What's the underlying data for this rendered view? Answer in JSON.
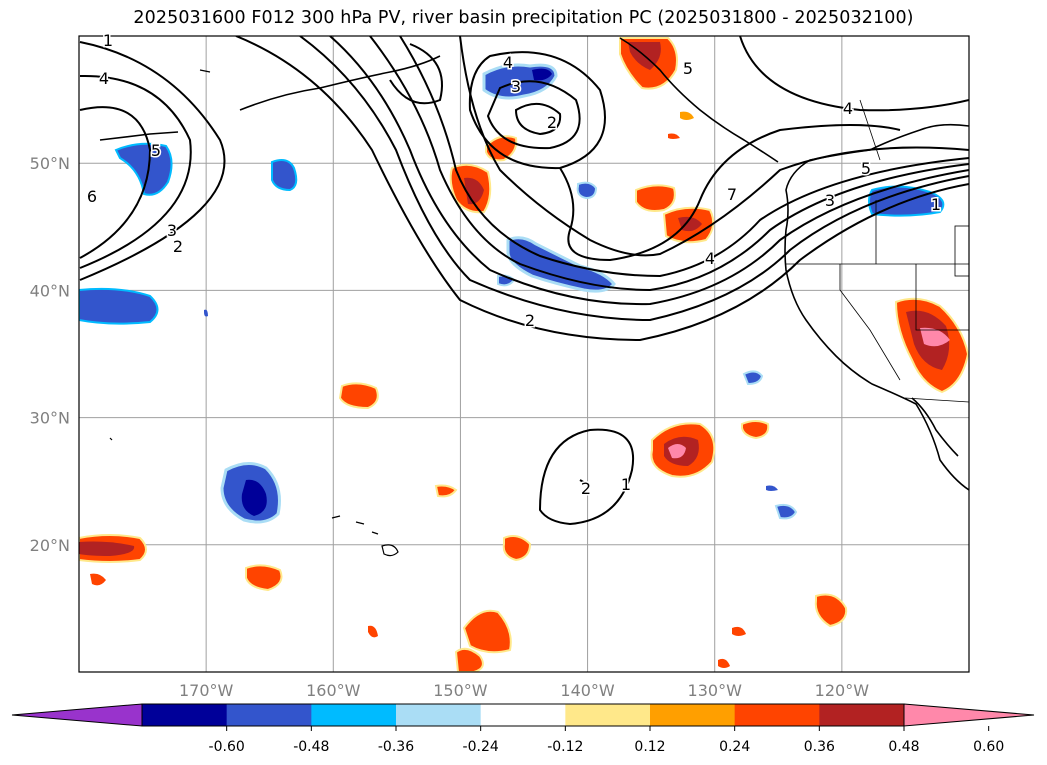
{
  "title": "2025031600 F012 300 hPa PV, river basin precipitation PC (2025031800 - 2025032100)",
  "map": {
    "lon_range": [
      180,
      110
    ],
    "lat_range": [
      10,
      60
    ],
    "lat_ticks": [
      {
        "lat": 20,
        "label": "20°N"
      },
      {
        "lat": 30,
        "label": "30°N"
      },
      {
        "lat": 40,
        "label": "40°N"
      },
      {
        "lat": 50,
        "label": "50°N"
      }
    ],
    "lon_ticks": [
      {
        "lon": 170,
        "label": "170°W"
      },
      {
        "lon": 160,
        "label": "160°W"
      },
      {
        "lon": 150,
        "label": "150°W"
      },
      {
        "lon": 140,
        "label": "140°W"
      },
      {
        "lon": 130,
        "label": "130°W"
      },
      {
        "lon": 120,
        "label": "120°W"
      }
    ],
    "grid": true
  },
  "colorbar": {
    "colors": [
      "#9933cc",
      "#000099",
      "#3355cc",
      "#00bbff",
      "#aaddf5",
      "#ffffff",
      "#ffe88a",
      "#ff9f00",
      "#ff4400",
      "#b22222",
      "#ff88aa"
    ],
    "ticks": [
      "-0.60",
      "-0.48",
      "-0.36",
      "-0.24",
      "-0.12",
      "0.12",
      "0.24",
      "0.36",
      "0.48",
      "0.60"
    ],
    "extend": "both"
  },
  "contour_labels": [
    "1",
    "4",
    "6",
    "3",
    "2",
    "5",
    "4",
    "3",
    "2",
    "4",
    "5",
    "7",
    "3",
    "5",
    "1",
    "4",
    "2",
    "2",
    "1"
  ]
}
